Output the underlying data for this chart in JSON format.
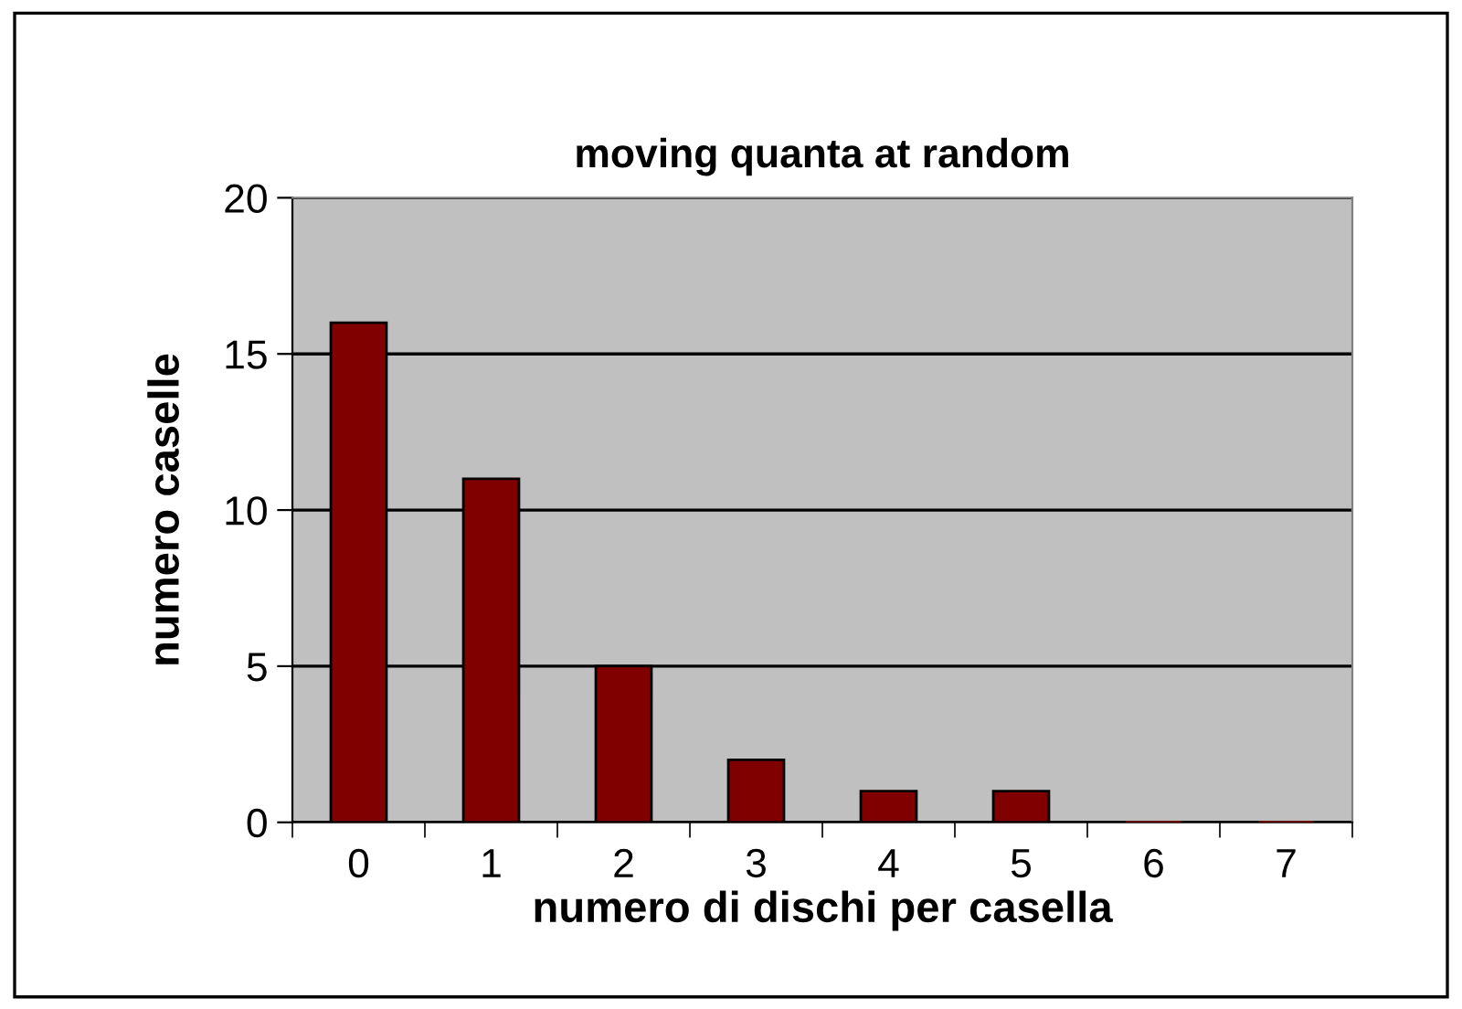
{
  "chart_data": {
    "type": "bar",
    "title": "moving quanta at random",
    "xlabel": "numero di dischi per casella",
    "ylabel": "numero caselle",
    "categories": [
      "0",
      "1",
      "2",
      "3",
      "4",
      "5",
      "6",
      "7"
    ],
    "values": [
      16,
      11,
      5,
      2,
      1,
      1,
      0,
      0
    ],
    "color": "#800000",
    "ylim": [
      0,
      20
    ],
    "yticks": [
      0,
      5,
      10,
      15,
      20
    ],
    "grid": "y"
  }
}
